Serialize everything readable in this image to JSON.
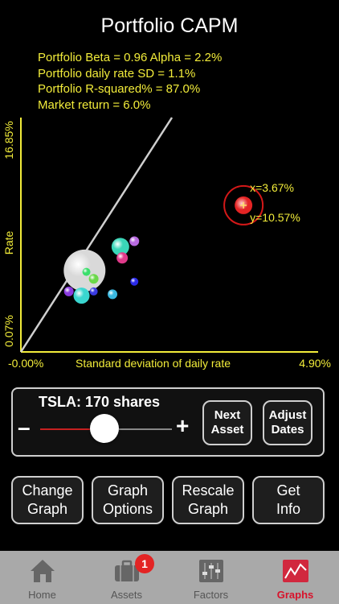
{
  "header": {
    "title": "Portfolio CAPM",
    "stats": [
      "Portfolio Beta = 0.96   Alpha = 2.2%",
      "Portfolio daily rate SD = 1.1%",
      "Portfolio R-squared% = 87.0%",
      "Market return = 6.0%"
    ]
  },
  "chart_data": {
    "type": "scatter",
    "title": "",
    "xlabel": "Standard deviation of daily rate",
    "ylabel": "Rate",
    "x_tick_labels": [
      "-0.00%",
      "4.90%"
    ],
    "y_tick_labels": [
      "0.07%",
      "16.85%"
    ],
    "xlim": [
      0.0,
      4.9
    ],
    "ylim": [
      0.07,
      16.85
    ],
    "grid": false,
    "legend": "none",
    "market_line": {
      "x": [
        0.0,
        2.49
      ],
      "y": [
        0.07,
        16.85
      ]
    },
    "selected_point": {
      "x": 3.67,
      "y": 10.57,
      "label_x": "x=3.67%",
      "label_y": "y=10.57%"
    },
    "points": [
      {
        "x": 1.05,
        "y": 5.9,
        "size": 26,
        "color": "#d9d9d9"
      },
      {
        "x": 1.64,
        "y": 7.6,
        "size": 11,
        "color": "#3ad6b8"
      },
      {
        "x": 1.87,
        "y": 8.0,
        "size": 6,
        "color": "#b86ae0"
      },
      {
        "x": 1.67,
        "y": 6.8,
        "size": 7,
        "color": "#e03a8a"
      },
      {
        "x": 1.2,
        "y": 5.3,
        "size": 6,
        "color": "#6bd84a"
      },
      {
        "x": 1.08,
        "y": 5.8,
        "size": 5,
        "color": "#3adf6b"
      },
      {
        "x": 1.0,
        "y": 4.1,
        "size": 10,
        "color": "#3ad6d0"
      },
      {
        "x": 0.79,
        "y": 4.4,
        "size": 6,
        "color": "#8a3ae0"
      },
      {
        "x": 1.2,
        "y": 4.4,
        "size": 5,
        "color": "#3a3ae0"
      },
      {
        "x": 1.51,
        "y": 4.2,
        "size": 6,
        "color": "#3ab8e0"
      },
      {
        "x": 1.87,
        "y": 5.1,
        "size": 5,
        "color": "#2a2ae8"
      }
    ],
    "axis_color": "#f2ec3a"
  },
  "slider_panel": {
    "asset_label": "TSLA:  170 shares",
    "minus": "–",
    "plus": "+",
    "shares_fraction": 0.55,
    "next_asset": "Next\nAsset",
    "adjust_dates": "Adjust\nDates"
  },
  "buttons": {
    "change_graph": "Change\nGraph",
    "graph_options": "Graph\nOptions",
    "rescale_graph": "Rescale\nGraph",
    "get_info": "Get\nInfo"
  },
  "tabs": [
    {
      "label": "Home",
      "icon": "home-icon"
    },
    {
      "label": "Assets",
      "icon": "briefcase-icon",
      "badge": "1"
    },
    {
      "label": "Factors",
      "icon": "sliders-icon"
    },
    {
      "label": "Graphs",
      "icon": "line-graph-icon",
      "active": true
    }
  ],
  "colors": {
    "accent": "#d8122b",
    "axis": "#f2ec3a",
    "selected": "#e32424"
  }
}
